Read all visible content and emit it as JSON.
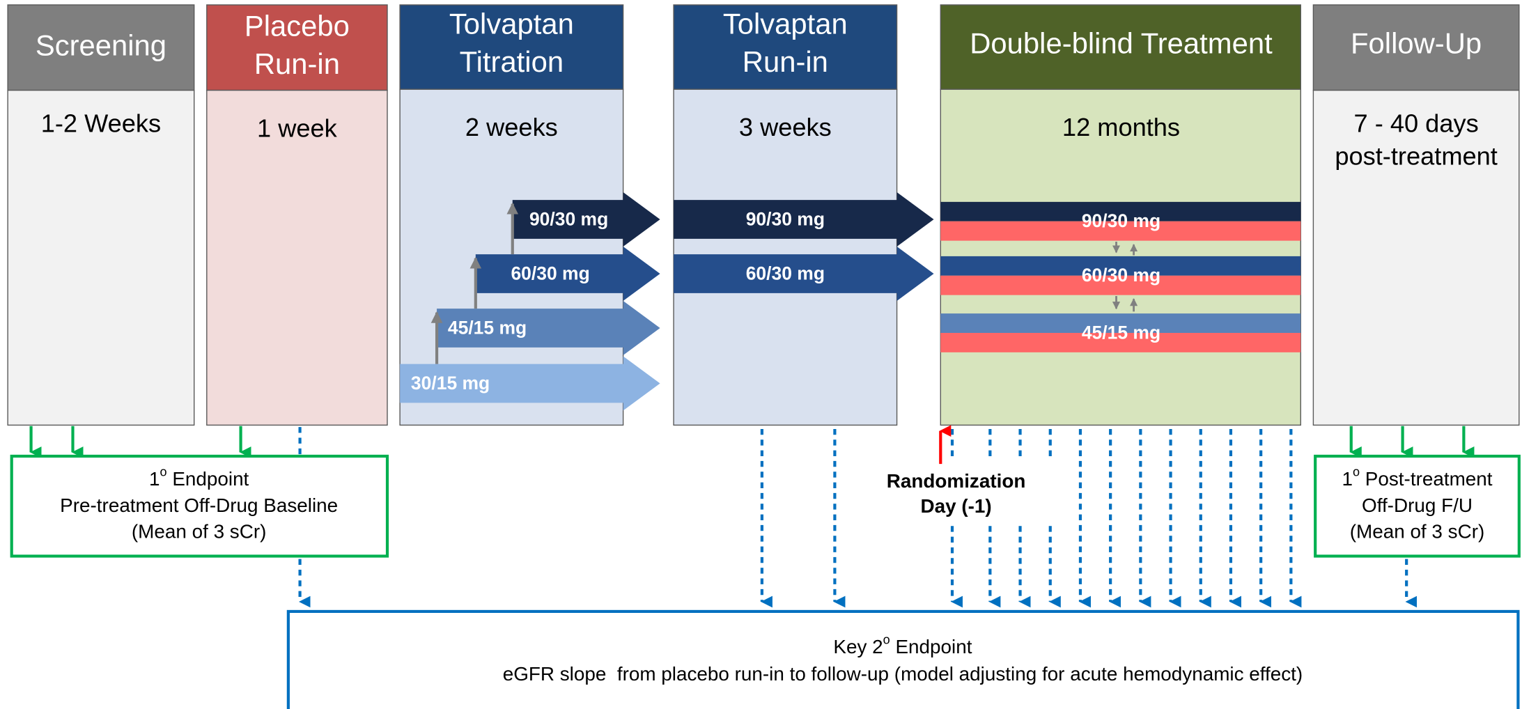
{
  "phases": [
    {
      "title": [
        "Screening"
      ],
      "duration": [
        "1-2 Weeks"
      ]
    },
    {
      "title": [
        "Placebo",
        "Run-in"
      ],
      "duration": [
        "1 week"
      ]
    },
    {
      "title": [
        "Tolvaptan",
        "Titration"
      ],
      "duration": [
        "2 weeks"
      ]
    },
    {
      "title": [
        "Tolvaptan",
        "Run-in"
      ],
      "duration": [
        "3 weeks"
      ]
    },
    {
      "title": [
        "Double-blind Treatment"
      ],
      "duration": [
        "12 months"
      ]
    },
    {
      "title": [
        "Follow-Up"
      ],
      "duration": [
        "7 - 40 days",
        "post-treatment"
      ]
    }
  ],
  "titration_doses": [
    "90/30 mg",
    "60/30 mg",
    "45/15 mg",
    "30/15 mg"
  ],
  "runin_doses": [
    "90/30 mg",
    "60/30 mg"
  ],
  "treatment_doses": [
    "90/30 mg",
    "60/30 mg",
    "45/15 mg"
  ],
  "primary_endpoint": {
    "lead": "1",
    "sup": "o",
    "rest": " Endpoint",
    "lines": [
      "Pre-treatment Off-Drug Baseline",
      "(Mean of 3 sCr)"
    ]
  },
  "followup_endpoint": {
    "lead": "1",
    "sup": "o",
    "rest": " Post-treatment",
    "lines": [
      "Off-Drug F/U",
      "(Mean of 3 sCr)"
    ]
  },
  "randomization": [
    "Randomization",
    "Day (-1)"
  ],
  "key_endpoint": {
    "lead": "Key 2",
    "sup": "o",
    "rest": " Endpoint",
    "lines": [
      "eGFR slope  from placebo run-in to follow-up (model adjusting for acute hemodynamic effect)"
    ]
  }
}
